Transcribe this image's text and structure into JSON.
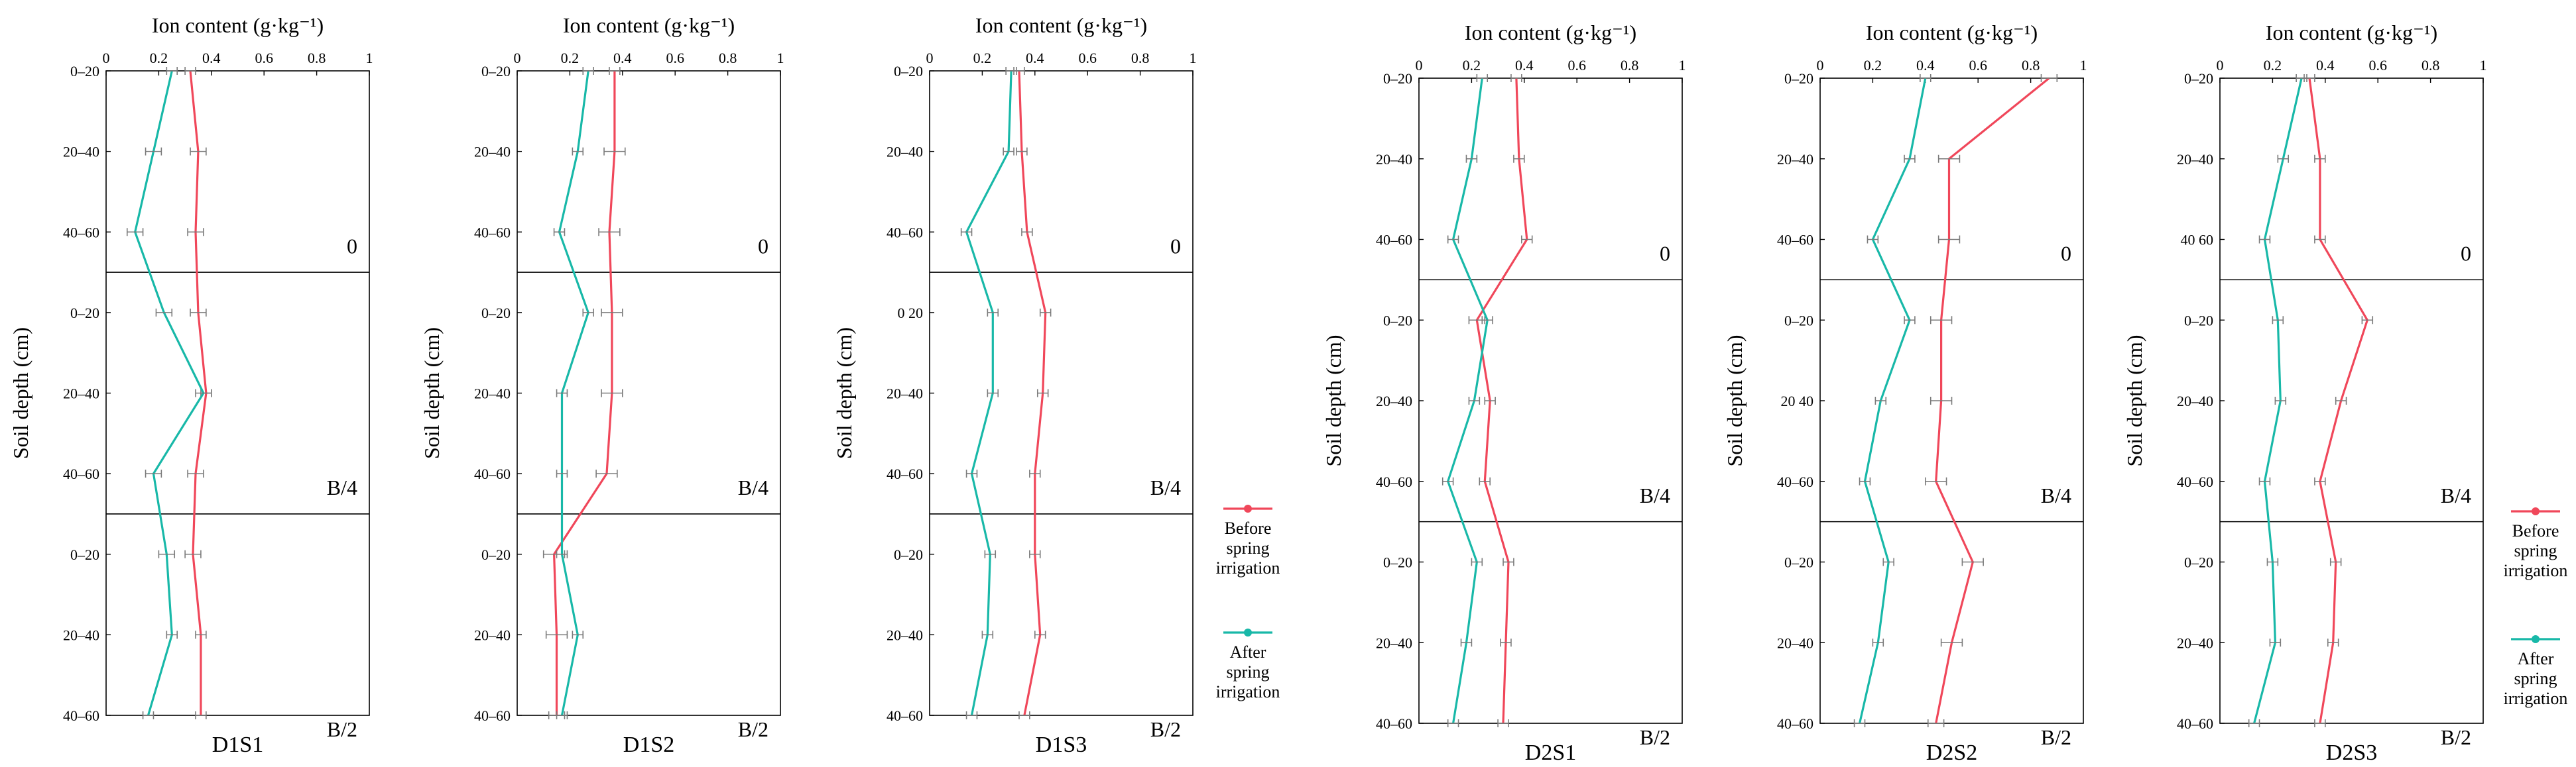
{
  "colors": {
    "before": "#f0475a",
    "after": "#18b8a8",
    "errorbar": "#7a7a7a",
    "axis": "#000000"
  },
  "legend": {
    "before_label": [
      "Before",
      "spring",
      "irrigation"
    ],
    "after_label": [
      "After",
      "spring",
      "irrigation"
    ]
  },
  "chart_data": [
    {
      "type": "line",
      "title": "D1S1",
      "xlabel": "Ion content (g·kg⁻¹)",
      "ylabel": "Soil depth (cm)",
      "xlim": [
        0,
        1
      ],
      "x_ticks": [
        "0",
        "0.2",
        "0.4",
        "0.6",
        "0.8",
        "1"
      ],
      "depth_labels": [
        "0–20",
        "20–40",
        "40–60",
        "0–20",
        "20–40",
        "40–60",
        "0–20",
        "20–40",
        "40–60"
      ],
      "block_labels": [
        "0",
        "B/4",
        "B/2"
      ],
      "series": [
        {
          "name": "Before spring irrigation",
          "values": [
            0.32,
            0.35,
            0.34,
            0.35,
            0.38,
            0.34,
            0.33,
            0.36,
            0.36
          ],
          "errors": [
            0.02,
            0.03,
            0.03,
            0.03,
            0.02,
            0.03,
            0.03,
            0.02,
            0.02
          ]
        },
        {
          "name": "After spring irrigation",
          "values": [
            0.25,
            0.18,
            0.11,
            0.22,
            0.37,
            0.18,
            0.23,
            0.25,
            0.16
          ],
          "errors": [
            0.02,
            0.03,
            0.03,
            0.03,
            0.03,
            0.03,
            0.03,
            0.02,
            0.02
          ]
        }
      ]
    },
    {
      "type": "line",
      "title": "D1S2",
      "xlabel": "Ion content (g·kg⁻¹)",
      "ylabel": "Soil depth (cm)",
      "xlim": [
        0,
        1
      ],
      "x_ticks": [
        "0",
        "0.2",
        "0.4",
        "0.6",
        "0.8",
        "1"
      ],
      "depth_labels": [
        "0–20",
        "20–40",
        "40–60",
        "0–20",
        "20–40",
        "40–60",
        "0–20",
        "20–40",
        "40–60"
      ],
      "block_labels": [
        "0",
        "B/4",
        "B/2"
      ],
      "series": [
        {
          "name": "Before spring irrigation",
          "values": [
            0.37,
            0.37,
            0.35,
            0.36,
            0.36,
            0.34,
            0.14,
            0.15,
            0.15
          ],
          "errors": [
            0.02,
            0.04,
            0.04,
            0.04,
            0.04,
            0.04,
            0.04,
            0.04,
            0.03
          ]
        },
        {
          "name": "After spring irrigation",
          "values": [
            0.27,
            0.23,
            0.16,
            0.27,
            0.17,
            0.17,
            0.17,
            0.23,
            0.17
          ],
          "errors": [
            0.02,
            0.02,
            0.02,
            0.02,
            0.02,
            0.02,
            0.02,
            0.02,
            0.02
          ]
        }
      ]
    },
    {
      "type": "line",
      "title": "D1S3",
      "xlabel": "Ion content (g·kg⁻¹)",
      "ylabel": "Soil depth (cm)",
      "xlim": [
        0,
        1
      ],
      "x_ticks": [
        "0",
        "0.2",
        "0.4",
        "0.6",
        "0.8",
        "1"
      ],
      "depth_labels": [
        "0–20",
        "20–40",
        "40–60",
        "0 20",
        "20–40",
        "40–60",
        "0–20",
        "20–40",
        "40–60"
      ],
      "block_labels": [
        "0",
        "B/4",
        "B/2"
      ],
      "series": [
        {
          "name": "Before spring irrigation",
          "values": [
            0.34,
            0.35,
            0.37,
            0.44,
            0.43,
            0.4,
            0.4,
            0.42,
            0.36
          ],
          "errors": [
            0.02,
            0.02,
            0.02,
            0.02,
            0.02,
            0.02,
            0.02,
            0.02,
            0.02
          ]
        },
        {
          "name": "After spring irrigation",
          "values": [
            0.31,
            0.3,
            0.14,
            0.24,
            0.24,
            0.16,
            0.23,
            0.22,
            0.16
          ],
          "errors": [
            0.02,
            0.02,
            0.02,
            0.02,
            0.02,
            0.02,
            0.02,
            0.02,
            0.02
          ]
        }
      ]
    },
    {
      "type": "line",
      "title": "D2S1",
      "xlabel": "Ion content (g·kg⁻¹)",
      "ylabel": "Soil depth (cm)",
      "xlim": [
        0,
        1
      ],
      "x_ticks": [
        "0",
        "0.2",
        "0.4",
        "0.6",
        "0.8",
        "1"
      ],
      "depth_labels": [
        "0–20",
        "20–40",
        "40–60",
        "0–20",
        "20–40",
        "40–60",
        "0–20",
        "20–40",
        "40–60"
      ],
      "block_labels": [
        "0",
        "B/4",
        "B/2"
      ],
      "series": [
        {
          "name": "Before spring irrigation",
          "values": [
            0.37,
            0.38,
            0.41,
            0.22,
            0.27,
            0.25,
            0.34,
            0.33,
            0.32
          ],
          "errors": [
            0.02,
            0.02,
            0.02,
            0.03,
            0.02,
            0.02,
            0.02,
            0.02,
            0.02
          ]
        },
        {
          "name": "After spring irrigation",
          "values": [
            0.24,
            0.2,
            0.13,
            0.26,
            0.21,
            0.11,
            0.22,
            0.18,
            0.13
          ],
          "errors": [
            0.02,
            0.02,
            0.02,
            0.02,
            0.02,
            0.02,
            0.02,
            0.02,
            0.02
          ]
        }
      ]
    },
    {
      "type": "line",
      "title": "D2S2",
      "xlabel": "Ion content (g·kg⁻¹)",
      "ylabel": "Soil depth (cm)",
      "xlim": [
        0,
        1
      ],
      "x_ticks": [
        "0",
        "0.2",
        "0.4",
        "0.6",
        "0.8",
        "1"
      ],
      "depth_labels": [
        "0–20",
        "20–40",
        "40–60",
        "0–20",
        "20 40",
        "40–60",
        "0–20",
        "20–40",
        "40–60"
      ],
      "block_labels": [
        "0",
        "B/4",
        "B/2"
      ],
      "series": [
        {
          "name": "Before spring irrigation",
          "values": [
            0.87,
            0.49,
            0.49,
            0.46,
            0.46,
            0.44,
            0.58,
            0.5,
            0.44
          ],
          "errors": [
            0.03,
            0.04,
            0.04,
            0.04,
            0.04,
            0.04,
            0.04,
            0.04,
            0.03
          ]
        },
        {
          "name": "After spring irrigation",
          "values": [
            0.4,
            0.34,
            0.2,
            0.34,
            0.23,
            0.17,
            0.26,
            0.22,
            0.15
          ],
          "errors": [
            0.02,
            0.02,
            0.02,
            0.02,
            0.02,
            0.02,
            0.02,
            0.02,
            0.02
          ]
        }
      ]
    },
    {
      "type": "line",
      "title": "D2S3",
      "xlabel": "Ion content (g·kg⁻¹)",
      "ylabel": "Soil depth (cm)",
      "xlim": [
        0,
        1
      ],
      "x_ticks": [
        "0",
        "0.2",
        "0.4",
        "0.6",
        "0.8",
        "1"
      ],
      "depth_labels": [
        "0–20",
        "20–40",
        "40 60",
        "0–20",
        "20–40",
        "40–60",
        "0–20",
        "20–40",
        "40–60"
      ],
      "block_labels": [
        "0",
        "B/4",
        "B/2"
      ],
      "series": [
        {
          "name": "Before spring irrigation",
          "values": [
            0.34,
            0.38,
            0.38,
            0.56,
            0.46,
            0.38,
            0.44,
            0.43,
            0.38
          ],
          "errors": [
            0.02,
            0.02,
            0.02,
            0.02,
            0.02,
            0.02,
            0.02,
            0.02,
            0.02
          ]
        },
        {
          "name": "After spring irrigation",
          "values": [
            0.31,
            0.24,
            0.17,
            0.22,
            0.23,
            0.17,
            0.2,
            0.21,
            0.13
          ],
          "errors": [
            0.02,
            0.02,
            0.02,
            0.02,
            0.02,
            0.02,
            0.02,
            0.02,
            0.02
          ]
        }
      ]
    }
  ]
}
